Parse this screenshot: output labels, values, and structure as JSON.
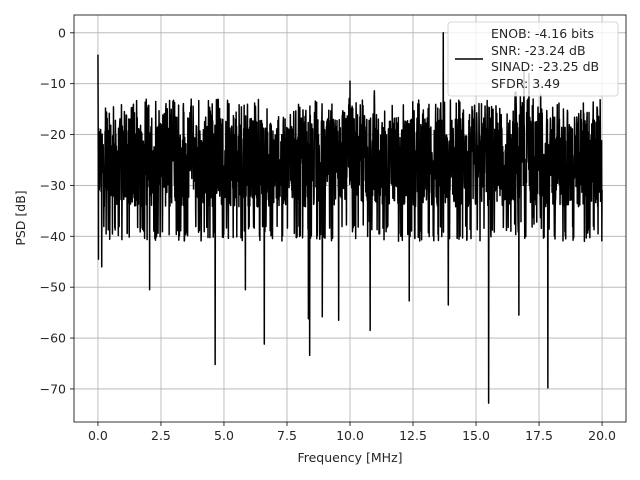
{
  "chart_data": {
    "type": "line",
    "xlabel": "Frequency [MHz]",
    "ylabel": "PSD [dB]",
    "xlim": [
      -0.95,
      20.95
    ],
    "ylim": [
      -76.5,
      3.5
    ],
    "xticks": [
      0.0,
      2.5,
      5.0,
      7.5,
      10.0,
      12.5,
      15.0,
      17.5,
      20.0
    ],
    "xtick_labels": [
      "0.0",
      "2.5",
      "5.0",
      "7.5",
      "10.0",
      "12.5",
      "15.0",
      "17.5",
      "20.0"
    ],
    "yticks": [
      0,
      -10,
      -20,
      -30,
      -40,
      -50,
      -60,
      -70
    ],
    "ytick_labels": [
      "0",
      "−10",
      "−20",
      "−30",
      "−40",
      "−50",
      "−60",
      "−70"
    ],
    "grid": true,
    "legend_position": "top-right",
    "series": [
      {
        "name": "",
        "color": "#000000",
        "x_range": [
          0.0,
          20.0
        ],
        "noise_band_db": [
          -38,
          -13
        ],
        "notable_points": [
          {
            "x": 0.0,
            "y": -4.3
          },
          {
            "x": 0.02,
            "y": -44.5
          },
          {
            "x": 0.15,
            "y": -46
          },
          {
            "x": 2.05,
            "y": -50.5
          },
          {
            "x": 4.65,
            "y": -65.2
          },
          {
            "x": 5.85,
            "y": -50.5
          },
          {
            "x": 6.6,
            "y": -61.2
          },
          {
            "x": 8.4,
            "y": -63.4
          },
          {
            "x": 8.35,
            "y": -56.2
          },
          {
            "x": 8.9,
            "y": -55.8
          },
          {
            "x": 9.55,
            "y": -56.5
          },
          {
            "x": 10.8,
            "y": -58.5
          },
          {
            "x": 12.35,
            "y": -52.7
          },
          {
            "x": 13.7,
            "y": 0.0
          },
          {
            "x": 13.9,
            "y": -53.5
          },
          {
            "x": 15.5,
            "y": -72.8
          },
          {
            "x": 16.7,
            "y": -55.5
          },
          {
            "x": 17.85,
            "y": -69.8
          },
          {
            "x": 10.0,
            "y": -9.5
          },
          {
            "x": 16.9,
            "y": -7.5
          },
          {
            "x": 17.1,
            "y": -8.0
          }
        ]
      }
    ],
    "legend": {
      "lines": [
        "ENOB: -4.16 bits",
        "SNR: -23.24 dB",
        "SINAD: -23.25 dB",
        "SFDR: 3.49"
      ]
    }
  }
}
